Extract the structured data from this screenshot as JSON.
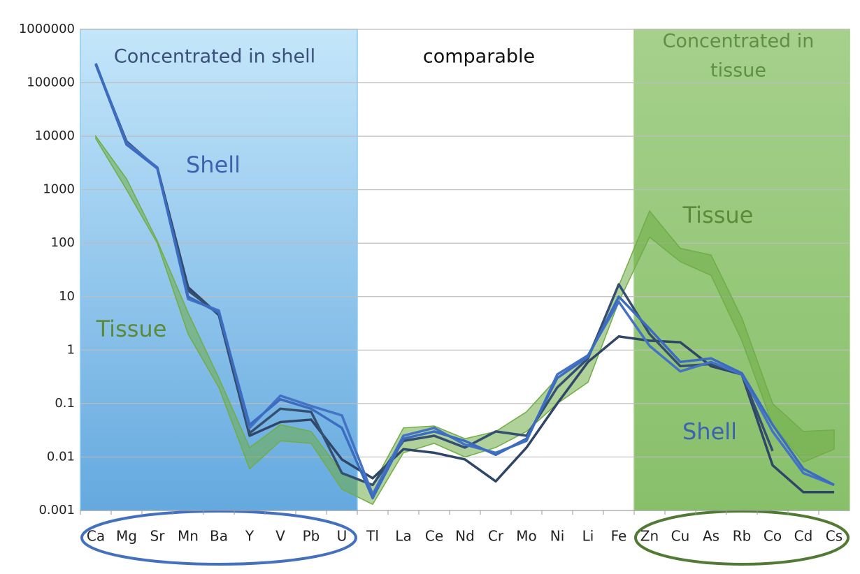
{
  "chart_data": {
    "type": "line",
    "log_scale": true,
    "grid": true,
    "ylim": [
      0.001,
      1000000
    ],
    "yticks": [
      0.001,
      0.01,
      0.1,
      1,
      10,
      100,
      1000,
      10000,
      100000,
      1000000
    ],
    "categories": [
      "Ca",
      "Mg",
      "Sr",
      "Mn",
      "Ba",
      "Y",
      "V",
      "Pb",
      "U",
      "Tl",
      "La",
      "Ce",
      "Nd",
      "Cr",
      "Mo",
      "Ni",
      "Li",
      "Fe",
      "Zn",
      "Cu",
      "As",
      "Rb",
      "Co",
      "Cd",
      "Cs"
    ],
    "regions": [
      {
        "label": [
          "Concentrated in shell"
        ],
        "from": "Ca",
        "to": "U",
        "color": "#8ccbf0",
        "text_color": "#3a4f7a"
      },
      {
        "label": [
          "comparable"
        ],
        "from": "Tl",
        "to": "Fe",
        "color": null,
        "text_color": "#111111"
      },
      {
        "label": [
          "Concentrated in",
          "tissue"
        ],
        "from": "Zn",
        "to": "Cs",
        "color": "#9fcd82",
        "text_color": "#5f8f45"
      }
    ],
    "annotations": [
      {
        "text": "Shell",
        "color": "#3d62b0"
      },
      {
        "text": "Tissue",
        "color": "#5a8a3a"
      },
      {
        "text": "Tissue",
        "color": "#5a8a3a"
      },
      {
        "text": "Shell",
        "color": "#3d62b0"
      }
    ],
    "bands": [
      {
        "color": "#70ad47",
        "upper": [
          10000,
          1600,
          110,
          5,
          0.3,
          0.015,
          0.04,
          0.03,
          0.005,
          0.003,
          0.035,
          0.038,
          0.022,
          0.03,
          0.07,
          0.3,
          0.8,
          16,
          400,
          80,
          60,
          4,
          0.1,
          0.03,
          0.032
        ],
        "lower": [
          9000,
          1000,
          100,
          2,
          0.2,
          0.006,
          0.02,
          0.018,
          0.0025,
          0.0013,
          0.012,
          0.018,
          0.01,
          0.015,
          0.03,
          0.1,
          0.25,
          8,
          130,
          45,
          25,
          1.5,
          0.04,
          0.008,
          0.014
        ]
      }
    ],
    "series": [
      {
        "color": "#2f4668",
        "values": [
          230000,
          7000,
          2600,
          15,
          4.5,
          0.025,
          0.045,
          0.05,
          0.009,
          0.004,
          0.014,
          0.012,
          0.009,
          0.0035,
          0.015,
          0.1,
          0.6,
          1.8,
          1.5,
          1.4,
          0.5,
          0.35,
          0.007,
          0.0022,
          0.0022
        ]
      },
      {
        "color": "#354f70",
        "values": [
          220000,
          8000,
          2500,
          13,
          4.8,
          0.028,
          0.08,
          0.07,
          0.005,
          0.003,
          0.02,
          0.025,
          0.015,
          0.03,
          0.025,
          0.2,
          0.7,
          17,
          2,
          0.5,
          0.55,
          0.35,
          0.013,
          null,
          null
        ]
      },
      {
        "color": "#4472c4",
        "values": [
          230000,
          7500,
          2600,
          9,
          5.5,
          0.035,
          0.14,
          0.09,
          0.06,
          0.002,
          0.025,
          0.035,
          0.017,
          0.012,
          0.02,
          0.35,
          0.8,
          8,
          1.2,
          0.4,
          0.6,
          0.35,
          0.03,
          0.005,
          0.003
        ]
      },
      {
        "color": "#3b6cc0",
        "values": [
          220000,
          7000,
          2500,
          10,
          5,
          0.04,
          0.12,
          0.08,
          0.035,
          0.0017,
          0.022,
          0.03,
          0.02,
          0.011,
          0.022,
          0.3,
          0.75,
          10,
          2.5,
          0.6,
          0.7,
          0.37,
          0.04,
          0.006,
          0.003
        ]
      }
    ]
  }
}
